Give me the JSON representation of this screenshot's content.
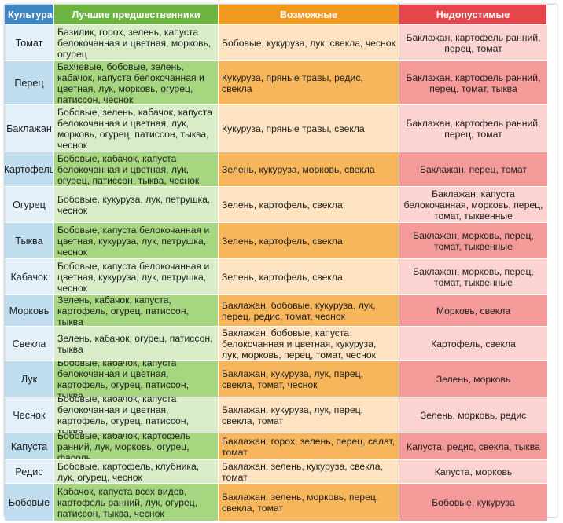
{
  "table": {
    "headers": [
      "Культура",
      "Лучшие предшественники",
      "Возможные",
      "Недопустимые"
    ],
    "rows": [
      {
        "crop": "Томат",
        "best": "Базилик, горох, зелень, капуста белокочанная и цветная, морковь, огурец",
        "possible": "Бобовые, кукуруза, лук, свекла, чеснок",
        "forbidden": "Баклажан, картофель ранний, перец, томат"
      },
      {
        "crop": "Перец",
        "best": "Бахчевые, бобовые, зелень, кабачок, капуста белокочанная и цветная, лук, морковь, огурец, патиссон, чеснок",
        "possible": "Кукуруза, пряные травы, редис, свекла",
        "forbidden": "Баклажан, картофель ранний, перец, томат, тыква"
      },
      {
        "crop": "Баклажан",
        "best": "Бобовые, зелень, кабачок, капуста белокочанная и цветная, лук, морковь, огурец, патиссон, тыква, чеснок",
        "possible": "Кукуруза, пряные травы, свекла",
        "forbidden": "Баклажан, картофель ранний, перец, томат"
      },
      {
        "crop": "Картофель",
        "best": "Бобовые, кабачок, капуста белокочанная и цветная, лук, огурец, патиссон, тыква, чеснок",
        "possible": "Зелень, кукуруза, морковь, свекла",
        "forbidden": "Баклажан, перец, томат"
      },
      {
        "crop": "Огурец",
        "best": "Бобовые, кукуруза, лук, петрушка, чеснок",
        "possible": "Зелень, картофель, свекла",
        "forbidden": "Баклажан, капуста белокочанная, морковь, перец, томат, тыквенные"
      },
      {
        "crop": "Тыква",
        "best": "Бобовые, капуста белокочанная и цветная, кукуруза, лук, петрушка, чеснок",
        "possible": "Зелень, картофель, свекла",
        "forbidden": "Баклажан, морковь, перец, томат, тыквенные"
      },
      {
        "crop": "Кабачок",
        "best": "Бобовые, капуста белокочанная и цветная, кукуруза, лук, петрушка, чеснок",
        "possible": "Зелень, картофель, свекла",
        "forbidden": "Баклажан, морковь, перец, томат, тыквенные"
      },
      {
        "crop": "Морковь",
        "best": "Зелень, кабачок, капуста, картофель, огурец, патиссон, тыква",
        "possible": "Баклажан, бобовые, кукуруза, лук, перец, редис, томат, чеснок",
        "forbidden": "Морковь, свекла"
      },
      {
        "crop": "Свекла",
        "best": "Зелень, кабачок, огурец, патиссон, тыква",
        "possible": "Баклажан, бобовые, капуста белокочанная и цветная, кукуруза, лук, морковь, перец, томат, чеснок",
        "forbidden": "Картофель, свекла"
      },
      {
        "crop": "Лук",
        "best": "Бобовые, кабачок, капуста белокочанная и цветная, картофель, огурец, патиссон, тыква",
        "possible": "Баклажан, кукуруза, лук, перец, свекла, томат, чеснок",
        "forbidden": "Зелень, морковь"
      },
      {
        "crop": "Чеснок",
        "best": "Бобовые, кабачок, капуста белокочанная и цветная, картофель, огурец, патиссон, тыква",
        "possible": "Баклажан, кукуруза, лук, перец, свекла, томат",
        "forbidden": "Зелень, морковь, редис"
      },
      {
        "crop": "Капуста",
        "best": "Бобовые, кабачок, картофель ранний, лук, морковь, огурец, фасоль",
        "possible": "Баклажан, горох, зелень, перец, салат, томат",
        "forbidden": "Капуста, редис, свекла, тыква"
      },
      {
        "crop": "Редис",
        "best": "Бобовые, картофель, клубника, лук, огурец, чеснок",
        "possible": "Баклажан, зелень, кукуруза, свекла, томат",
        "forbidden": "Капуста, морковь"
      },
      {
        "crop": "Бобовые",
        "best": "Кабачок, капуста всех видов, картофель ранний, лук, огурец, патиссон, тыква, чеснок",
        "possible": "Баклажан, зелень, морковь, перец, свекла, томат",
        "forbidden": "Бобовые, кукуруза"
      }
    ]
  }
}
